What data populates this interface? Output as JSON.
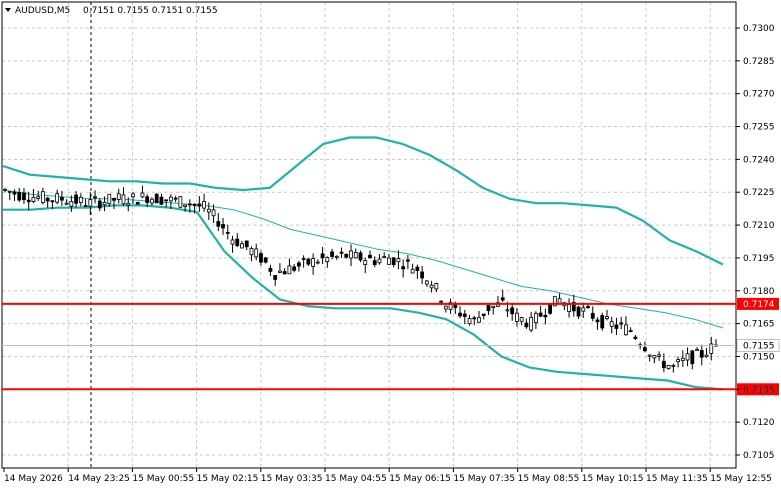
{
  "header": {
    "symbol_timeframe": "AUDUSD,M5",
    "ohlc": "0.7151 0.7155 0.7151 0.7155"
  },
  "colors": {
    "background": "#ffffff",
    "grid": "#c8c8c8",
    "axis": "#000000",
    "candle": "#000000",
    "band": "#20b2aa",
    "level_line": "#ff0000",
    "current_price_line": "#c0c0c0"
  },
  "chart_data": {
    "type": "line",
    "title": "",
    "ylim": [
      0.71,
      0.731
    ],
    "y_ticks": [
      "0.7300",
      "0.7285",
      "0.7270",
      "0.7255",
      "0.7240",
      "0.7225",
      "0.7210",
      "0.7195",
      "0.7180",
      "0.7165",
      "0.7150",
      "0.7135",
      "0.7120",
      "0.7105"
    ],
    "x_tick_labels": [
      "14 May 2026",
      "14 May 23:25",
      "15 May 00:55",
      "15 May 02:15",
      "15 May 03:35",
      "15 May 04:55",
      "15 May 06:15",
      "15 May 07:35",
      "15 May 08:55",
      "15 May 10:15",
      "15 May 11:35",
      "15 May 12:55"
    ],
    "grid": true,
    "horizontal_levels": [
      {
        "value": 0.7174,
        "label": "0.7174"
      },
      {
        "value": 0.7135,
        "label": "0.7135"
      }
    ],
    "current_price": {
      "value": 0.7155,
      "label": "0.7155"
    },
    "series": [
      {
        "values": [
          0.7237,
          0.7233,
          0.7232,
          0.7231,
          0.723,
          0.723,
          0.7229,
          0.7229,
          0.7227,
          0.7226,
          0.7227,
          0.7237,
          0.7247,
          0.725,
          0.725,
          0.7247,
          0.7242,
          0.7235,
          0.7227,
          0.7222,
          0.722,
          0.722,
          0.7219,
          0.7218,
          0.7212,
          0.7203,
          0.7198,
          0.7192
        ]
      },
      {
        "values": [
          0.7226,
          0.7224,
          0.7223,
          0.7222,
          0.7222,
          0.7221,
          0.722,
          0.7219,
          0.7217,
          0.7213,
          0.7208,
          0.7205,
          0.7202,
          0.7199,
          0.7197,
          0.7194,
          0.719,
          0.7186,
          0.7182,
          0.718,
          0.7177,
          0.7174,
          0.7172,
          0.717,
          0.7167,
          0.7163
        ]
      },
      {
        "values": [
          0.7217,
          0.7217,
          0.7218,
          0.7218,
          0.7219,
          0.7219,
          0.7218,
          0.7216,
          0.7198,
          0.7186,
          0.7176,
          0.7173,
          0.7172,
          0.7172,
          0.7172,
          0.717,
          0.7167,
          0.716,
          0.715,
          0.7145,
          0.7143,
          0.7142,
          0.7141,
          0.714,
          0.7139,
          0.7136,
          0.7135
        ]
      },
      {
        "name": "price",
        "values": [
          0.7226,
          0.7224,
          0.7223,
          0.7222,
          0.7222,
          0.7221,
          0.722,
          0.7221,
          0.7222,
          0.7222,
          0.7223,
          0.7222,
          0.7221,
          0.722,
          0.7218,
          0.7212,
          0.7204,
          0.72,
          0.7195,
          0.7188,
          0.719,
          0.7192,
          0.7194,
          0.7195,
          0.7196,
          0.7195,
          0.7194,
          0.7195,
          0.7193,
          0.719,
          0.7184,
          0.7174,
          0.717,
          0.7166,
          0.7172,
          0.7174,
          0.7168,
          0.7165,
          0.7171,
          0.7176,
          0.7172,
          0.717,
          0.7166,
          0.7164,
          0.7162,
          0.7155,
          0.7148,
          0.7145,
          0.7149,
          0.7151,
          0.7155
        ]
      }
    ]
  }
}
